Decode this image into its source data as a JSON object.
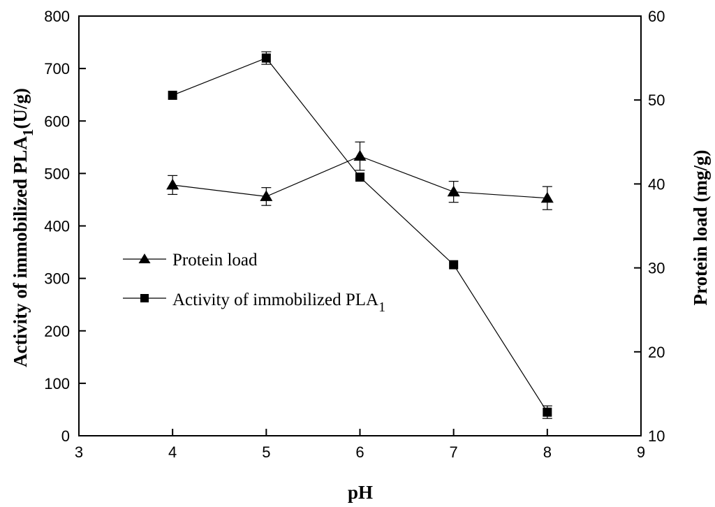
{
  "chart_data": {
    "type": "line",
    "xlabel": "pH",
    "ylabel_left": {
      "main": "Activity of immobilized PLA",
      "sub": "1",
      "tail": "(U/g)"
    },
    "ylabel_right": "Protein load (mg/g)",
    "xlim": [
      3,
      9
    ],
    "xticks": [
      "3",
      "4",
      "5",
      "6",
      "7",
      "8",
      "9"
    ],
    "ylim_left": [
      0,
      800
    ],
    "yticks_left": [
      "0",
      "100",
      "200",
      "300",
      "400",
      "500",
      "600",
      "700",
      "800"
    ],
    "ylim_right": [
      10,
      60
    ],
    "yticks_right": [
      "10",
      "20",
      "30",
      "40",
      "50",
      "60"
    ],
    "series": [
      {
        "name": "Protein load",
        "axis": "left",
        "marker": "triangle",
        "x": [
          4,
          5,
          6,
          7,
          8
        ],
        "values": [
          478,
          456,
          533,
          465,
          453
        ],
        "errors": [
          18,
          17,
          27,
          20,
          22
        ]
      },
      {
        "name": "Activity of immobilized PLA",
        "name_sub": "1",
        "axis": "left",
        "marker": "square",
        "x": [
          4,
          5,
          6,
          7,
          8
        ],
        "values": [
          649,
          720,
          493,
          326,
          45
        ],
        "errors": [
          0,
          12,
          0,
          0,
          12
        ]
      }
    ],
    "legend_position": "center-left"
  }
}
